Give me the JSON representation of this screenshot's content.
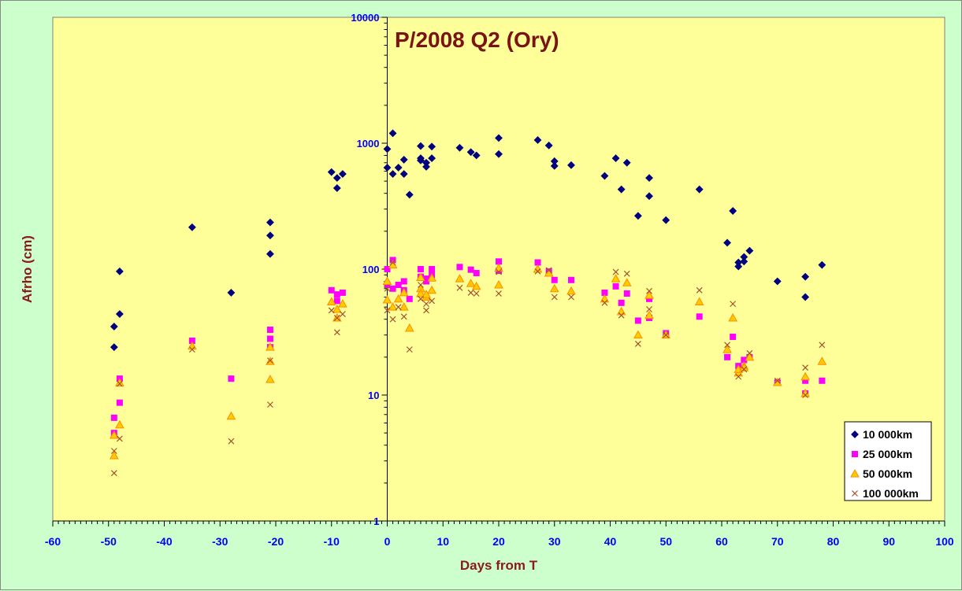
{
  "chart_data": {
    "type": "scatter",
    "title": "P/2008 Q2 (Ory)",
    "xlabel": "Days from T",
    "ylabel": "Afrho (cm)",
    "xlim": [
      -60,
      100
    ],
    "ylim": [
      1,
      10000
    ],
    "yscale": "log",
    "x_ticks": [
      "-60",
      "-50",
      "-40",
      "-30",
      "-20",
      "-10",
      "0",
      "10",
      "20",
      "30",
      "40",
      "50",
      "60",
      "70",
      "80",
      "90",
      "100"
    ],
    "y_ticks": [
      "1",
      "10",
      "100",
      "1000",
      "10000"
    ],
    "legend_position": "bottom-right",
    "colors": {
      "plot_bg": "#ffff99",
      "page_bg": "#ccffcc",
      "tick_text": "#0000ff",
      "axis_label": "#8b1a1a"
    },
    "series": [
      {
        "name": "10 000km",
        "marker": "diamond",
        "color": "#000080",
        "points": [
          [
            -49,
            35
          ],
          [
            -49,
            24
          ],
          [
            -48,
            96
          ],
          [
            -48,
            44
          ],
          [
            -35,
            215
          ],
          [
            -28,
            65
          ],
          [
            -21,
            235
          ],
          [
            -21,
            185
          ],
          [
            -21,
            132
          ],
          [
            -10,
            590
          ],
          [
            -9,
            530
          ],
          [
            -9,
            440
          ],
          [
            -8,
            570
          ],
          [
            0,
            900
          ],
          [
            0,
            640
          ],
          [
            1,
            1200
          ],
          [
            1,
            570
          ],
          [
            2,
            640
          ],
          [
            3,
            740
          ],
          [
            3,
            570
          ],
          [
            4,
            390
          ],
          [
            6,
            950
          ],
          [
            6,
            760
          ],
          [
            6,
            730
          ],
          [
            7,
            700
          ],
          [
            7,
            650
          ],
          [
            8,
            940
          ],
          [
            8,
            760
          ],
          [
            13,
            920
          ],
          [
            15,
            850
          ],
          [
            16,
            800
          ],
          [
            20,
            1100
          ],
          [
            20,
            820
          ],
          [
            27,
            1060
          ],
          [
            29,
            960
          ],
          [
            30,
            720
          ],
          [
            30,
            660
          ],
          [
            33,
            670
          ],
          [
            39,
            550
          ],
          [
            41,
            760
          ],
          [
            42,
            430
          ],
          [
            43,
            700
          ],
          [
            45,
            265
          ],
          [
            47,
            530
          ],
          [
            47,
            380
          ],
          [
            50,
            245
          ],
          [
            56,
            430
          ],
          [
            61,
            162
          ],
          [
            62,
            290
          ],
          [
            63,
            105
          ],
          [
            63,
            113
          ],
          [
            64,
            125
          ],
          [
            64,
            115
          ],
          [
            65,
            140
          ],
          [
            70,
            80
          ],
          [
            75,
            87
          ],
          [
            75,
            60
          ],
          [
            78,
            108
          ]
        ]
      },
      {
        "name": "25 000km",
        "marker": "square",
        "color": "#ff00ff",
        "points": [
          [
            -49,
            6.6
          ],
          [
            -49,
            5
          ],
          [
            -48,
            13.5
          ],
          [
            -48,
            8.7
          ],
          [
            -35,
            27
          ],
          [
            -28,
            13.5
          ],
          [
            -21,
            33
          ],
          [
            -21,
            28
          ],
          [
            -21,
            24
          ],
          [
            -10,
            68
          ],
          [
            -9,
            63
          ],
          [
            -9,
            56
          ],
          [
            -8,
            65
          ],
          [
            0,
            100
          ],
          [
            0,
            75
          ],
          [
            1,
            118
          ],
          [
            1,
            70
          ],
          [
            2,
            75
          ],
          [
            3,
            80
          ],
          [
            3,
            68
          ],
          [
            4,
            58
          ],
          [
            6,
            100
          ],
          [
            6,
            87
          ],
          [
            7,
            80
          ],
          [
            7,
            84
          ],
          [
            8,
            100
          ],
          [
            8,
            90
          ],
          [
            13,
            104
          ],
          [
            15,
            99
          ],
          [
            16,
            93
          ],
          [
            20,
            115
          ],
          [
            20,
            97
          ],
          [
            27,
            113
          ],
          [
            29,
            96
          ],
          [
            30,
            82
          ],
          [
            33,
            82
          ],
          [
            39,
            65
          ],
          [
            41,
            73
          ],
          [
            42,
            54
          ],
          [
            43,
            64
          ],
          [
            45,
            39
          ],
          [
            47,
            41
          ],
          [
            47,
            58
          ],
          [
            50,
            31
          ],
          [
            56,
            42
          ],
          [
            61,
            20
          ],
          [
            62,
            29
          ],
          [
            63,
            17
          ],
          [
            64,
            19
          ],
          [
            65,
            20
          ],
          [
            70,
            12.6
          ],
          [
            75,
            13
          ],
          [
            75,
            10.3
          ],
          [
            78,
            13
          ]
        ]
      },
      {
        "name": "50 000km",
        "marker": "triangle",
        "color": "#ff8c00",
        "points": [
          [
            -49,
            4.8
          ],
          [
            -49,
            3.3
          ],
          [
            -48,
            5.8
          ],
          [
            -48,
            12.5
          ],
          [
            -35,
            24.5
          ],
          [
            -28,
            6.8
          ],
          [
            -21,
            24
          ],
          [
            -21,
            18.5
          ],
          [
            -21,
            13.3
          ],
          [
            -10,
            55
          ],
          [
            -9,
            48
          ],
          [
            -9,
            41
          ],
          [
            -8,
            53
          ],
          [
            0,
            80
          ],
          [
            0,
            57
          ],
          [
            1,
            108
          ],
          [
            1,
            50
          ],
          [
            2,
            58
          ],
          [
            3,
            65
          ],
          [
            3,
            50
          ],
          [
            4,
            34
          ],
          [
            6,
            86
          ],
          [
            6,
            70
          ],
          [
            6,
            64
          ],
          [
            7,
            60
          ],
          [
            7,
            63
          ],
          [
            8,
            85
          ],
          [
            8,
            68
          ],
          [
            13,
            84
          ],
          [
            15,
            77
          ],
          [
            16,
            73
          ],
          [
            20,
            102
          ],
          [
            20,
            75
          ],
          [
            27,
            100
          ],
          [
            29,
            93
          ],
          [
            30,
            70
          ],
          [
            33,
            67
          ],
          [
            39,
            58
          ],
          [
            41,
            84
          ],
          [
            42,
            46
          ],
          [
            43,
            78
          ],
          [
            45,
            30
          ],
          [
            47,
            62
          ],
          [
            47,
            43
          ],
          [
            50,
            30
          ],
          [
            56,
            55
          ],
          [
            61,
            23
          ],
          [
            62,
            41
          ],
          [
            63,
            15
          ],
          [
            63,
            16
          ],
          [
            64,
            17
          ],
          [
            64,
            16.5
          ],
          [
            65,
            20
          ],
          [
            70,
            12.6
          ],
          [
            75,
            14
          ],
          [
            75,
            10.3
          ],
          [
            78,
            18.5
          ]
        ]
      },
      {
        "name": "100 000km",
        "marker": "x",
        "color": "#a0522d",
        "points": [
          [
            -49,
            3.6
          ],
          [
            -49,
            2.4
          ],
          [
            -48,
            4.5
          ],
          [
            -48,
            12.3
          ],
          [
            -35,
            23
          ],
          [
            -28,
            4.3
          ],
          [
            -21,
            18.8
          ],
          [
            -21,
            8.4
          ],
          [
            -10,
            47
          ],
          [
            -9,
            41
          ],
          [
            -9,
            31.5
          ],
          [
            -8,
            44
          ],
          [
            0,
            70
          ],
          [
            0,
            47
          ],
          [
            1,
            113
          ],
          [
            1,
            40
          ],
          [
            2,
            50
          ],
          [
            3,
            42
          ],
          [
            4,
            23
          ],
          [
            6,
            75
          ],
          [
            6,
            58
          ],
          [
            7,
            53
          ],
          [
            7,
            47
          ],
          [
            8,
            56
          ],
          [
            13,
            71
          ],
          [
            15,
            65
          ],
          [
            16,
            64
          ],
          [
            20,
            95
          ],
          [
            20,
            64
          ],
          [
            27,
            96
          ],
          [
            29,
            98
          ],
          [
            30,
            60
          ],
          [
            33,
            60
          ],
          [
            39,
            54
          ],
          [
            41,
            95
          ],
          [
            42,
            43
          ],
          [
            43,
            92
          ],
          [
            45,
            25.5
          ],
          [
            47,
            48
          ],
          [
            47,
            67
          ],
          [
            50,
            30
          ],
          [
            56,
            68
          ],
          [
            61,
            25
          ],
          [
            62,
            53
          ],
          [
            63,
            14
          ],
          [
            64,
            16
          ],
          [
            65,
            21.5
          ],
          [
            70,
            13
          ],
          [
            75,
            16.5
          ],
          [
            75,
            10
          ],
          [
            78,
            25
          ]
        ]
      }
    ]
  }
}
